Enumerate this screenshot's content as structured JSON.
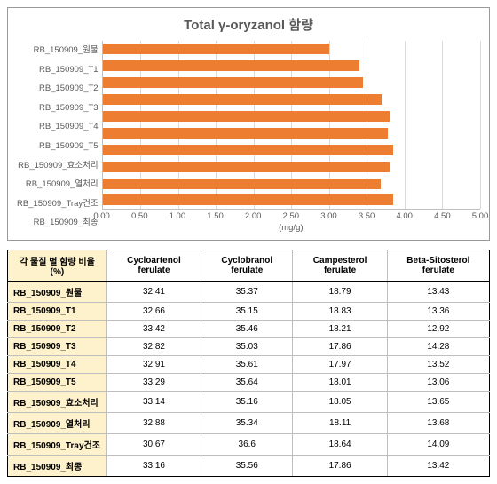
{
  "chart": {
    "type": "bar-horizontal",
    "title": "Total γ-oryzanol 함량",
    "title_fontsize": 15,
    "title_color": "#595959",
    "xaxis_label": "(mg/g)",
    "label_fontsize": 9.5,
    "label_color": "#595959",
    "background_color": "#ffffff",
    "border_color": "#999999",
    "grid_color": "#d9d9d9",
    "axis_color": "#bfbfbf",
    "bar_color": "#ed7d31",
    "xlim": [
      0.0,
      5.0
    ],
    "xtick_step": 0.5,
    "xticks": [
      "0.00",
      "0.50",
      "1.00",
      "1.50",
      "2.00",
      "2.50",
      "3.00",
      "3.50",
      "4.00",
      "4.50",
      "5.00"
    ],
    "categories": [
      "RB_150909_원물",
      "RB_150909_T1",
      "RB_150909_T2",
      "RB_150909_T3",
      "RB_150909_T4",
      "RB_150909_T5",
      "RB_150909_효소처리",
      "RB_150909_열처리",
      "RB_150909_Tray건조",
      "RB_150909_최종"
    ],
    "values": [
      3.0,
      3.4,
      3.45,
      3.7,
      3.8,
      3.78,
      3.85,
      3.8,
      3.68,
      3.85
    ]
  },
  "table": {
    "corner_label": "각 물질 별 함량 비율 (%)",
    "header_bg": "#ffffff",
    "rowhead_bg": "#fef2cc",
    "cell_bg": "#ffffff",
    "border_color_outer": "#000000",
    "border_color_inner": "#bfbfbf",
    "font_size": 10,
    "columns": [
      "Cycloartenol ferulate",
      "Cyclobranol ferulate",
      "Campesterol ferulate",
      "Beta-Sitosterol ferulate"
    ],
    "rows": [
      {
        "label": "RB_150909_원물",
        "values": [
          "32.41",
          "35.37",
          "18.79",
          "13.43"
        ]
      },
      {
        "label": "RB_150909_T1",
        "values": [
          "32.66",
          "35.15",
          "18.83",
          "13.36"
        ]
      },
      {
        "label": "RB_150909_T2",
        "values": [
          "33.42",
          "35.46",
          "18.21",
          "12.92"
        ]
      },
      {
        "label": "RB_150909_T3",
        "values": [
          "32.82",
          "35.03",
          "17.86",
          "14.28"
        ]
      },
      {
        "label": "RB_150909_T4",
        "values": [
          "32.91",
          "35.61",
          "17.97",
          "13.52"
        ]
      },
      {
        "label": "RB_150909_T5",
        "values": [
          "33.29",
          "35.64",
          "18.01",
          "13.06"
        ]
      },
      {
        "label": "RB_150909_효소처리",
        "values": [
          "33.14",
          "35.16",
          "18.05",
          "13.65"
        ]
      },
      {
        "label": "RB_150909_열처리",
        "values": [
          "32.88",
          "35.34",
          "18.11",
          "13.68"
        ]
      },
      {
        "label": "RB_150909_Tray건조",
        "values": [
          "30.67",
          "36.6",
          "18.64",
          "14.09"
        ]
      },
      {
        "label": "RB_150909_최종",
        "values": [
          "33.16",
          "35.56",
          "17.86",
          "13.42"
        ]
      }
    ]
  }
}
